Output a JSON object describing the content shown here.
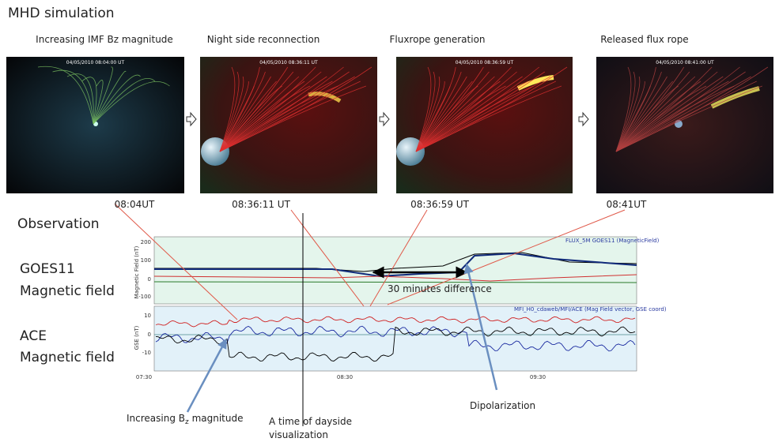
{
  "title": "MHD simulation",
  "panels": [
    {
      "label": "Increasing IMF Bz magnitude",
      "stamp": "04/05/2010 08:04:00 UT",
      "time": "08:04UT"
    },
    {
      "label": "Night side reconnection",
      "stamp": "04/05/2010 08:36:11 UT",
      "time": "08:36:11 UT"
    },
    {
      "label": "Fluxrope generation",
      "stamp": "04/05/2010 08:36:59 UT",
      "time": "08:36:59 UT"
    },
    {
      "label": "Released flux rope",
      "stamp": "04/05/2010 08:41:00 UT",
      "time": "08:41UT"
    }
  ],
  "observation": {
    "heading": "Observation",
    "rows": [
      [
        "GOES11",
        "Magnetic field"
      ],
      [
        "ACE",
        "Magnetic field"
      ]
    ]
  },
  "plot": {
    "goes": {
      "title": "FLUX_5M GOES11 (MagneticField)",
      "ylabel": "Magnetic Field (nT)",
      "yticks": [
        "200",
        "100",
        "0",
        "-100"
      ]
    },
    "ace": {
      "title": "MFI_H0_cdaweb/MFI/ACE (Mag Field vector, GSE coord)",
      "ylabel": "GSE (nT)",
      "yticks": [
        "10",
        "0",
        "-10"
      ]
    },
    "xticks": [
      "07:30",
      "08:30",
      "09:30"
    ]
  },
  "annotations": {
    "difference": "30 minutes difference",
    "bz": [
      "Increasing B",
      "z",
      " magnitude"
    ],
    "dayside": [
      "A time of dayside",
      "visualization"
    ],
    "dipolarization": "Dipolarization"
  }
}
